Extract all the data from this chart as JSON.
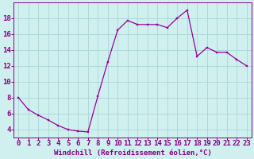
{
  "x": [
    0,
    1,
    2,
    3,
    4,
    5,
    6,
    7,
    8,
    9,
    10,
    11,
    12,
    13,
    14,
    15,
    16,
    17,
    18,
    19,
    20,
    21,
    22,
    23
  ],
  "y": [
    8.0,
    6.5,
    5.8,
    5.2,
    4.5,
    4.0,
    3.8,
    3.7,
    8.2,
    12.5,
    16.5,
    17.7,
    17.2,
    17.2,
    17.2,
    16.8,
    18.0,
    19.0,
    13.2,
    14.3,
    13.7,
    13.7,
    12.8,
    12.0
  ],
  "line_color": "#990099",
  "marker_color": "#990099",
  "bg_color": "#d0f0f0",
  "grid_color": "#b0d8d8",
  "xlabel": "Windchill (Refroidissement éolien,°C)",
  "xlim": [
    -0.5,
    23.5
  ],
  "ylim": [
    3,
    20
  ],
  "yticks": [
    4,
    6,
    8,
    10,
    12,
    14,
    16,
    18
  ],
  "xticks": [
    0,
    1,
    2,
    3,
    4,
    5,
    6,
    7,
    8,
    9,
    10,
    11,
    12,
    13,
    14,
    15,
    16,
    17,
    18,
    19,
    20,
    21,
    22,
    23
  ],
  "xlabel_fontsize": 6.5,
  "tick_fontsize": 6.5,
  "axis_color": "#880088"
}
